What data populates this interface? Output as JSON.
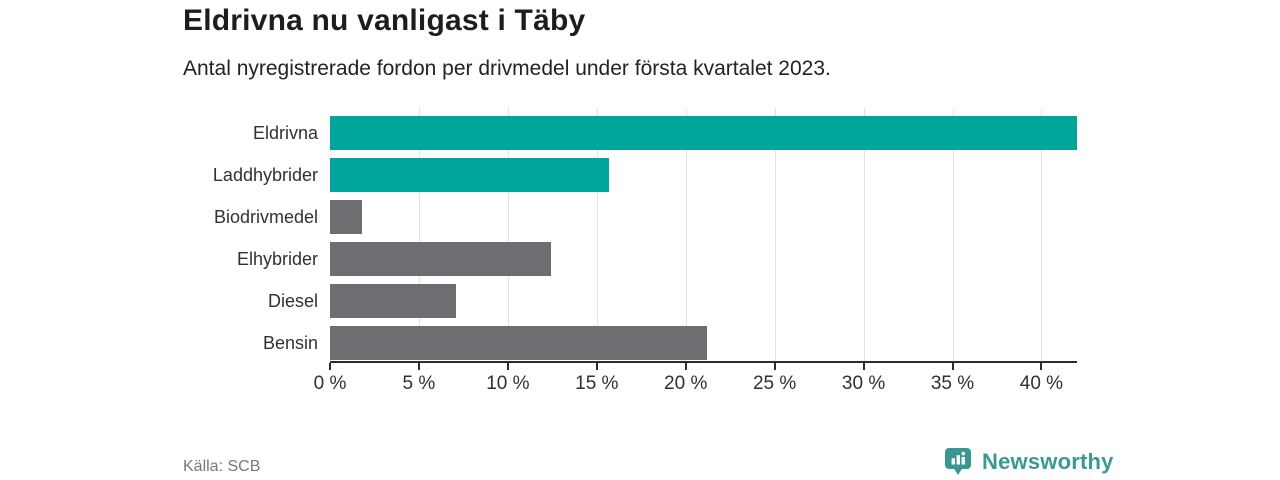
{
  "header": {
    "title": "Eldrivna nu vanligast i Täby",
    "subtitle": "Antal nyregistrerade fordon per drivmedel under första kvartalet 2023."
  },
  "chart_data": {
    "type": "bar",
    "orientation": "horizontal",
    "title": "Eldrivna nu vanligast i Täby",
    "subtitle": "Antal nyregistrerade fordon per drivmedel under första kvartalet 2023.",
    "categories": [
      "Eldrivna",
      "Laddhybrider",
      "Biodrivmedel",
      "Elhybrider",
      "Diesel",
      "Bensin"
    ],
    "values": [
      42,
      15.7,
      1.8,
      12.4,
      7.1,
      21.2
    ],
    "unit": "%",
    "bar_colors": [
      "#00a59b",
      "#00a59b",
      "#6d6d72",
      "#6d6d72",
      "#6d6d72",
      "#6d6d72"
    ],
    "highlight_color": "#00a59b",
    "default_color": "#6d6d72",
    "xlabel": "",
    "ylabel": "",
    "xlim": [
      0,
      42
    ],
    "x_ticks": [
      0,
      5,
      10,
      15,
      20,
      25,
      30,
      35,
      40
    ],
    "x_tick_labels": [
      "0 %",
      "5 %",
      "10 %",
      "15 %",
      "20 %",
      "25 %",
      "30 %",
      "35 %",
      "40 %"
    ],
    "grid": "vertical",
    "legend": "none"
  },
  "footer": {
    "source": "Källa: SCB",
    "brand": "Newsworthy",
    "brand_color": "#3a9a92",
    "brand_badge_color": "#38988f"
  }
}
